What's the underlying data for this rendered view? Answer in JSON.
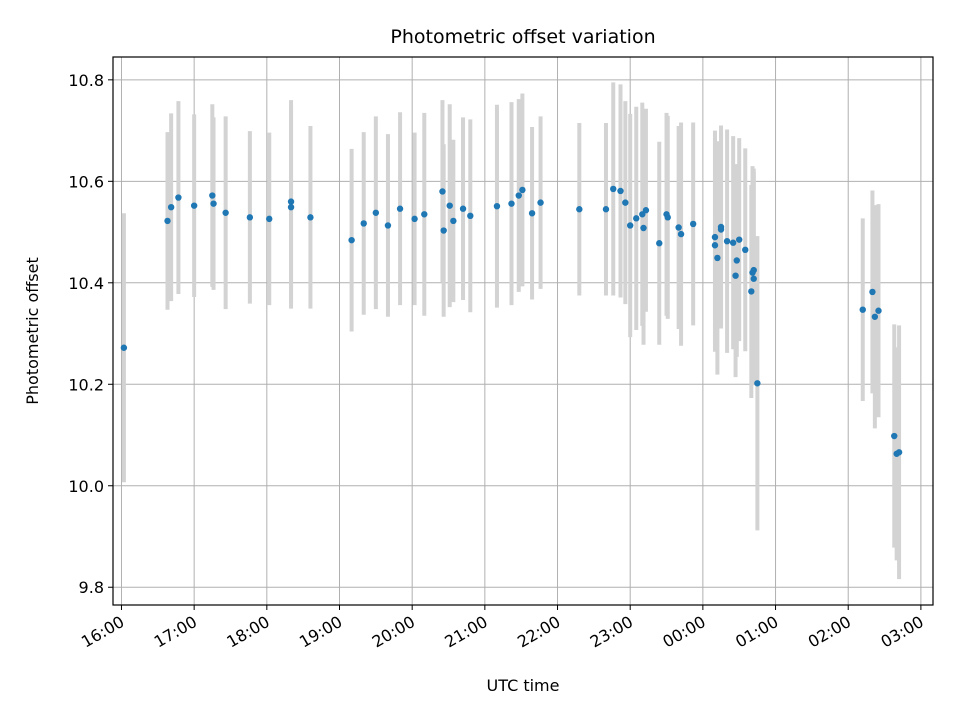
{
  "chart_data": {
    "type": "scatter",
    "title": "Photometric offset variation",
    "xlabel": "UTC time",
    "ylabel": "Photometric offset",
    "x_axis_type": "time",
    "x_start_date": "16:00",
    "xlim": [
      "15:53",
      "03:10"
    ],
    "ylim": [
      9.765,
      10.845
    ],
    "yticks": [
      9.8,
      10.0,
      10.2,
      10.4,
      10.6,
      10.8
    ],
    "ytick_labels": [
      "9.8",
      "10.0",
      "10.2",
      "10.4",
      "10.6",
      "10.8"
    ],
    "xticks": [
      "16:00",
      "17:00",
      "18:00",
      "19:00",
      "20:00",
      "21:00",
      "22:00",
      "23:00",
      "00:00",
      "01:00",
      "02:00",
      "03:00"
    ],
    "xtick_labels": [
      "16:00",
      "17:00",
      "18:00",
      "19:00",
      "20:00",
      "21:00",
      "22:00",
      "23:00",
      "00:00",
      "01:00",
      "02:00",
      "03:00"
    ],
    "grid": true,
    "point_color": "#1f77b4",
    "errorbar_color": "#d3d3d3",
    "series": [
      {
        "x": [
          "16:02",
          "16:38",
          "16:41",
          "16:47",
          "17:00",
          "17:15",
          "17:16",
          "17:26",
          "17:46",
          "18:02",
          "18:20",
          "18:20",
          "18:36",
          "19:10",
          "19:20",
          "19:30",
          "19:40",
          "19:50",
          "20:02",
          "20:10",
          "20:25",
          "20:26",
          "20:31",
          "20:34",
          "20:42",
          "20:48",
          "21:10",
          "21:22",
          "21:28",
          "21:31",
          "21:39",
          "21:46",
          "22:18",
          "22:40",
          "22:46",
          "22:52",
          "22:56",
          "23:00",
          "23:05",
          "23:10",
          "23:11",
          "23:13",
          "23:24",
          "23:30",
          "23:31",
          "23:40",
          "23:42",
          "23:52",
          "00:10",
          "00:10",
          "00:12",
          "00:15",
          "00:15",
          "00:20",
          "00:25",
          "00:27",
          "00:28",
          "00:30",
          "00:35",
          "00:40",
          "00:41",
          "00:42",
          "00:42",
          "00:45",
          "02:12",
          "02:20",
          "02:22",
          "02:25",
          "02:38",
          "02:40",
          "02:42"
        ],
        "y": [
          10.272,
          10.522,
          10.549,
          10.568,
          10.552,
          10.572,
          10.556,
          10.538,
          10.529,
          10.526,
          10.56,
          10.549,
          10.529,
          10.484,
          10.517,
          10.538,
          10.513,
          10.546,
          10.526,
          10.535,
          10.58,
          10.503,
          10.552,
          10.522,
          10.546,
          10.532,
          10.551,
          10.556,
          10.572,
          10.583,
          10.537,
          10.558,
          10.545,
          10.545,
          10.585,
          10.581,
          10.558,
          10.513,
          10.527,
          10.535,
          10.508,
          10.543,
          10.478,
          10.535,
          10.529,
          10.509,
          10.496,
          10.516,
          10.49,
          10.474,
          10.449,
          10.505,
          10.51,
          10.482,
          10.479,
          10.414,
          10.444,
          10.485,
          10.465,
          10.383,
          10.42,
          10.408,
          10.425,
          10.202,
          10.347,
          10.382,
          10.333,
          10.345,
          10.098,
          10.063,
          10.066
        ],
        "yerr": [
          0.265,
          0.175,
          0.185,
          0.19,
          0.18,
          0.18,
          0.17,
          0.19,
          0.17,
          0.17,
          0.2,
          0.2,
          0.18,
          0.18,
          0.18,
          0.19,
          0.18,
          0.19,
          0.17,
          0.2,
          0.18,
          0.17,
          0.2,
          0.16,
          0.18,
          0.19,
          0.2,
          0.2,
          0.19,
          0.19,
          0.17,
          0.17,
          0.17,
          0.17,
          0.21,
          0.21,
          0.2,
          0.22,
          0.22,
          0.22,
          0.23,
          0.2,
          0.2,
          0.2,
          0.2,
          0.2,
          0.22,
          0.2,
          0.21,
          0.21,
          0.23,
          0.19,
          0.2,
          0.22,
          0.21,
          0.2,
          0.19,
          0.2,
          0.2,
          0.21,
          0.21,
          0.21,
          0.2,
          0.29,
          0.18,
          0.2,
          0.22,
          0.21,
          0.22,
          0.21,
          0.25
        ]
      }
    ]
  }
}
